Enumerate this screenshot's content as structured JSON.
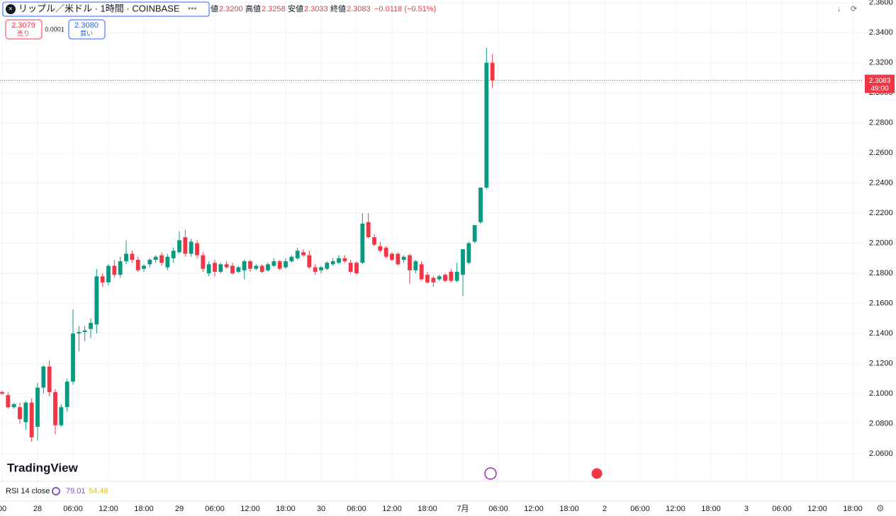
{
  "chart_data": {
    "type": "candlestick",
    "up_color": "#089981",
    "down_color": "#f23645",
    "xlim": [
      -0.36,
      145.8
    ],
    "ylim": [
      2.0417,
      2.3617
    ],
    "yticks": [
      {
        "value": 2.06,
        "label": "2.0600"
      },
      {
        "value": 2.08,
        "label": "2.0800"
      },
      {
        "value": 2.1,
        "label": "2.1000"
      },
      {
        "value": 2.12,
        "label": "2.1200"
      },
      {
        "value": 2.14,
        "label": "2.1400"
      },
      {
        "value": 2.16,
        "label": "2.1600"
      },
      {
        "value": 2.18,
        "label": "2.1800"
      },
      {
        "value": 2.2,
        "label": "2.2000"
      },
      {
        "value": 2.22,
        "label": "2.2200"
      },
      {
        "value": 2.24,
        "label": "2.2400"
      },
      {
        "value": 2.26,
        "label": "2.2600"
      },
      {
        "value": 2.28,
        "label": "2.2800"
      },
      {
        "value": 2.3,
        "label": "2.3000"
      },
      {
        "value": 2.32,
        "label": "2.3200"
      },
      {
        "value": 2.34,
        "label": "2.3400"
      },
      {
        "value": 2.36,
        "label": "2.3600"
      }
    ],
    "xticks": [
      {
        "value": 0,
        "label": "00"
      },
      {
        "value": 6,
        "label": "28"
      },
      {
        "value": 12,
        "label": "06:00"
      },
      {
        "value": 18,
        "label": "12:00"
      },
      {
        "value": 24,
        "label": "18:00"
      },
      {
        "value": 30,
        "label": "29"
      },
      {
        "value": 36,
        "label": "06:00"
      },
      {
        "value": 42,
        "label": "12:00"
      },
      {
        "value": 48,
        "label": "18:00"
      },
      {
        "value": 54,
        "label": "30"
      },
      {
        "value": 60,
        "label": "06:00"
      },
      {
        "value": 66,
        "label": "12:00"
      },
      {
        "value": 72,
        "label": "18:00"
      },
      {
        "value": 78,
        "label": "7月"
      },
      {
        "value": 84,
        "label": "06:00"
      },
      {
        "value": 90,
        "label": "12:00"
      },
      {
        "value": 96,
        "label": "18:00"
      },
      {
        "value": 102,
        "label": "2"
      },
      {
        "value": 108,
        "label": "06:00"
      },
      {
        "value": 114,
        "label": "12:00"
      },
      {
        "value": 120,
        "label": "18:00"
      },
      {
        "value": 126,
        "label": "3"
      },
      {
        "value": 132,
        "label": "06:00"
      },
      {
        "value": 138,
        "label": "12:00"
      },
      {
        "value": 144,
        "label": "18:00"
      }
    ],
    "open": [
      2.101,
      2.099,
      2.091,
      2.091,
      2.081,
      2.094,
      2.078,
      2.104,
      2.118,
      2.101,
      2.079,
      2.091,
      2.108,
      2.14,
      2.141,
      2.143,
      2.146,
      2.178,
      2.174,
      2.185,
      2.179,
      2.188,
      2.193,
      2.189,
      2.183,
      2.186,
      2.189,
      2.192,
      2.184,
      2.19,
      2.194,
      2.204,
      2.193,
      2.2,
      2.192,
      2.18,
      2.187,
      2.181,
      2.186,
      2.185,
      2.181,
      2.182,
      2.188,
      2.183,
      2.185,
      2.182,
      2.185,
      2.188,
      2.184,
      2.188,
      2.19,
      2.194,
      2.192,
      2.184,
      2.182,
      2.183,
      2.186,
      2.187,
      2.19,
      2.187,
      2.187,
      2.187,
      2.214,
      2.204,
      2.198,
      2.197,
      2.193,
      2.193,
      2.189,
      2.192,
      2.182,
      2.186,
      2.179,
      2.177,
      2.176,
      2.179,
      2.181,
      2.175,
      2.179,
      2.187,
      2.201,
      2.214,
      2.237,
      2.32
    ],
    "high": [
      2.102,
      2.101,
      2.094,
      2.094,
      2.095,
      2.097,
      2.107,
      2.119,
      2.122,
      2.103,
      2.093,
      2.11,
      2.156,
      2.145,
      2.145,
      2.15,
      2.183,
      2.18,
      2.186,
      2.189,
      2.191,
      2.202,
      2.195,
      2.191,
      2.186,
      2.19,
      2.192,
      2.194,
      2.193,
      2.197,
      2.208,
      2.209,
      2.203,
      2.202,
      2.194,
      2.188,
      2.189,
      2.187,
      2.188,
      2.187,
      2.185,
      2.189,
      2.189,
      2.186,
      2.186,
      2.187,
      2.19,
      2.189,
      2.19,
      2.192,
      2.197,
      2.196,
      2.195,
      2.186,
      2.185,
      2.188,
      2.19,
      2.192,
      2.192,
      2.189,
      2.188,
      2.22,
      2.22,
      2.206,
      2.201,
      2.198,
      2.194,
      2.194,
      2.192,
      2.193,
      2.189,
      2.188,
      2.181,
      2.178,
      2.179,
      2.18,
      2.183,
      2.187,
      2.196,
      2.201,
      2.212,
      2.237,
      2.33,
      2.3258
    ],
    "low": [
      2.099,
      2.09,
      2.09,
      2.08,
      2.076,
      2.068,
      2.069,
      2.1,
      2.098,
      2.073,
      2.078,
      2.088,
      2.106,
      2.128,
      2.135,
      2.137,
      2.14,
      2.171,
      2.172,
      2.177,
      2.177,
      2.186,
      2.187,
      2.181,
      2.181,
      2.184,
      2.187,
      2.185,
      2.182,
      2.187,
      2.193,
      2.191,
      2.191,
      2.19,
      2.181,
      2.178,
      2.178,
      2.18,
      2.183,
      2.179,
      2.18,
      2.176,
      2.181,
      2.182,
      2.18,
      2.181,
      2.184,
      2.182,
      2.183,
      2.187,
      2.189,
      2.191,
      2.183,
      2.179,
      2.18,
      2.182,
      2.185,
      2.186,
      2.187,
      2.18,
      2.179,
      2.186,
      2.203,
      2.198,
      2.194,
      2.19,
      2.188,
      2.185,
      2.187,
      2.173,
      2.18,
      2.175,
      2.173,
      2.171,
      2.175,
      2.174,
      2.174,
      2.174,
      2.165,
      2.186,
      2.2,
      2.213,
      2.236,
      2.3033
    ],
    "close": [
      2.1,
      2.091,
      2.093,
      2.083,
      2.094,
      2.071,
      2.104,
      2.118,
      2.101,
      2.079,
      2.091,
      2.108,
      2.14,
      2.141,
      2.142,
      2.147,
      2.178,
      2.174,
      2.185,
      2.179,
      2.188,
      2.193,
      2.189,
      2.182,
      2.185,
      2.189,
      2.191,
      2.187,
      2.191,
      2.195,
      2.202,
      2.193,
      2.201,
      2.192,
      2.183,
      2.186,
      2.181,
      2.186,
      2.184,
      2.18,
      2.184,
      2.188,
      2.183,
      2.185,
      2.181,
      2.186,
      2.188,
      2.183,
      2.188,
      2.191,
      2.195,
      2.192,
      2.184,
      2.181,
      2.184,
      2.187,
      2.188,
      2.19,
      2.188,
      2.181,
      2.18,
      2.213,
      2.204,
      2.199,
      2.195,
      2.191,
      2.189,
      2.186,
      2.191,
      2.182,
      2.188,
      2.176,
      2.174,
      2.174,
      2.178,
      2.175,
      2.175,
      2.181,
      2.196,
      2.2,
      2.212,
      2.237,
      2.32,
      2.3083
    ],
    "price_label": "2.3083",
    "countdown": "49:00"
  },
  "header": {
    "symbol": "リップル／米ドル · 1時間 · COINBASE",
    "o_label": "値",
    "o": "2.3200",
    "h_label": "高値",
    "h": "2.3258",
    "l_label": "安値",
    "l": "2.3033",
    "c_label": "終値",
    "c": "2.3083",
    "change": "−0.0118 (−0.51%)"
  },
  "trade": {
    "sell_price": "2.3079",
    "sell": "売り",
    "spread": "0.0001",
    "buy_price": "2.3080",
    "buy": "買い"
  },
  "logo": "TradingView",
  "rsi": {
    "label": "RSI 14 close",
    "v1": "79.01",
    "v2": "54.48"
  }
}
